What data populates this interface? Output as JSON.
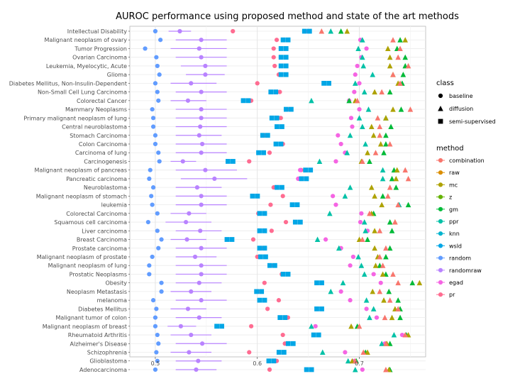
{
  "chart_data": {
    "type": "scatter",
    "title": "AUROC performance using proposed method and state of the art methods",
    "xlabel": "",
    "ylabel": "",
    "xlim": [
      0.475,
      0.765
    ],
    "xticks": [
      "0.5",
      "0.6",
      "0.7"
    ],
    "xtick_values": [
      0.5,
      0.6,
      0.7
    ],
    "grid": true,
    "legend_position": "right",
    "categories": [
      "Intellectual Disability",
      "Malignant neoplasm of ovary",
      "Tumor Progression",
      "Ovarian Carcinoma",
      "Leukemia, Myelocytic, Acute",
      "Glioma",
      "Diabetes Mellitus, Non-Insulin-Dependent",
      "Non-Small Cell Lung Carcinoma",
      "Colorectal Cancer",
      "Mammary Neoplasms",
      "Primary malignant neoplasm of lung",
      "Central neuroblastoma",
      "Stomach Carcinoma",
      "Colon Carcinoma",
      "Carcinoma of lung",
      "Carcinogenesis",
      "Malignant neoplasm of pancreas",
      "Pancreatic carcinoma",
      "Neuroblastoma",
      "Malignant neoplasm of stomach",
      "leukemia",
      "Colorectal Carcinoma",
      "Squamous cell carcinoma",
      "Liver carcinoma",
      "Breast Carcinoma",
      "Prostate carcinoma",
      "Malignant neoplasm of prostate",
      "Malignant neoplasm of lung",
      "Prostatic Neoplasms",
      "Obesity",
      "Neoplasm Metastasis",
      "melanoma",
      "Diabetes Mellitus",
      "Malignant tumor of colon",
      "Malignant neoplasm of breast",
      "Rheumatoid Arthritis",
      "Alzheimer's Disease",
      "Schizophrenia",
      "Glioblastoma",
      "Adenocarcinoma"
    ],
    "shape_legend": {
      "title": "class",
      "items": [
        {
          "label": "baseline",
          "shape": "circle"
        },
        {
          "label": "diffusion",
          "shape": "triangle"
        },
        {
          "label": "semi-supervised",
          "shape": "square"
        }
      ]
    },
    "color_legend": {
      "title": "method",
      "items": [
        {
          "label": "combination",
          "color": "#F8766D"
        },
        {
          "label": "raw",
          "color": "#DB8E00"
        },
        {
          "label": "mc",
          "color": "#AEA200"
        },
        {
          "label": "z",
          "color": "#64B200"
        },
        {
          "label": "gm",
          "color": "#00BA38"
        },
        {
          "label": "ppr",
          "color": "#00C1A7"
        },
        {
          "label": "knn",
          "color": "#00B4CE"
        },
        {
          "label": "wsld",
          "color": "#00A6E6"
        },
        {
          "label": "random",
          "color": "#619CFF"
        },
        {
          "label": "randomraw",
          "color": "#B983FF"
        },
        {
          "label": "egad",
          "color": "#F564E3"
        },
        {
          "label": "pr",
          "color": "#FF6C91"
        }
      ]
    },
    "series": [
      {
        "name": "random",
        "class": "baseline",
        "values": [
          0.5,
          0.505,
          0.49,
          0.501,
          0.502,
          0.504,
          0.5,
          0.502,
          0.503,
          0.497,
          0.498,
          0.498,
          0.5,
          0.5,
          0.503,
          0.504,
          0.495,
          0.494,
          0.498,
          0.496,
          0.497,
          0.502,
          0.493,
          0.502,
          0.506,
          0.503,
          0.497,
          0.494,
          0.494,
          0.506,
          0.506,
          0.498,
          0.501,
          0.5,
          0.5,
          0.502,
          0.503,
          0.501,
          0.502,
          0.5
        ]
      },
      {
        "name": "randomraw",
        "class": "baseline",
        "values": [
          0.524,
          0.545,
          0.543,
          0.545,
          0.549,
          0.549,
          0.535,
          0.545,
          0.532,
          0.545,
          0.545,
          0.544,
          0.543,
          0.546,
          0.545,
          0.527,
          0.549,
          0.558,
          0.541,
          0.545,
          0.545,
          0.533,
          0.53,
          0.544,
          0.531,
          0.545,
          0.539,
          0.545,
          0.545,
          0.543,
          0.535,
          0.545,
          0.532,
          0.543,
          0.525,
          0.535,
          0.546,
          0.533,
          0.542,
          0.54
        ]
      },
      {
        "name": "randomraw_range",
        "class": "baseline",
        "values": [
          [
            0.513,
            0.535
          ],
          [
            0.52,
            0.57
          ],
          [
            0.515,
            0.57
          ],
          [
            0.52,
            0.57
          ],
          [
            0.525,
            0.57
          ],
          [
            0.53,
            0.568
          ],
          [
            0.515,
            0.56
          ],
          [
            0.52,
            0.57
          ],
          [
            0.515,
            0.55
          ],
          [
            0.52,
            0.57
          ],
          [
            0.52,
            0.57
          ],
          [
            0.52,
            0.57
          ],
          [
            0.52,
            0.565
          ],
          [
            0.52,
            0.57
          ],
          [
            0.52,
            0.57
          ],
          [
            0.515,
            0.54
          ],
          [
            0.52,
            0.58
          ],
          [
            0.525,
            0.59
          ],
          [
            0.52,
            0.565
          ],
          [
            0.52,
            0.57
          ],
          [
            0.52,
            0.57
          ],
          [
            0.515,
            0.55
          ],
          [
            0.51,
            0.555
          ],
          [
            0.52,
            0.565
          ],
          [
            0.515,
            0.55
          ],
          [
            0.52,
            0.57
          ],
          [
            0.52,
            0.56
          ],
          [
            0.52,
            0.57
          ],
          [
            0.52,
            0.57
          ],
          [
            0.52,
            0.565
          ],
          [
            0.515,
            0.555
          ],
          [
            0.52,
            0.57
          ],
          [
            0.515,
            0.55
          ],
          [
            0.52,
            0.565
          ],
          [
            0.512,
            0.54
          ],
          [
            0.515,
            0.555
          ],
          [
            0.52,
            0.57
          ],
          [
            0.515,
            0.555
          ],
          [
            0.52,
            0.565
          ],
          [
            0.52,
            0.56
          ]
        ]
      },
      {
        "name": "egad",
        "class": "baseline",
        "values": [
          0.65,
          0.701,
          0.707,
          0.702,
          0.698,
          0.696,
          0.7,
          0.695,
          0.69,
          0.7,
          0.692,
          0.693,
          0.679,
          0.682,
          0.686,
          0.677,
          0.642,
          0.64,
          0.619,
          0.674,
          0.677,
          0.702,
          0.701,
          0.708,
          0.667,
          0.682,
          0.694,
          0.691,
          0.714,
          0.721,
          0.682,
          0.691,
          0.707,
          0.717,
          0.657,
          0.742,
          0.725,
          0.686,
          0.695,
          0.703
        ]
      },
      {
        "name": "pr",
        "class": "baseline",
        "values": [
          0.576,
          0.619,
          0.616,
          0.616,
          0.617,
          0.621,
          0.6,
          0.622,
          0.594,
          0.632,
          0.623,
          0.624,
          0.607,
          0.625,
          0.612,
          0.592,
          0.643,
          0.641,
          0.616,
          0.625,
          0.613,
          0.601,
          0.628,
          0.614,
          0.596,
          0.604,
          0.6,
          0.616,
          0.624,
          0.607,
          0.601,
          0.621,
          0.61,
          0.63,
          0.594,
          0.625,
          0.627,
          0.592,
          0.619,
          0.612
        ]
      },
      {
        "name": "wsld",
        "class": "semi-supervised",
        "values": [
          0.648,
          0.627,
          0.625,
          0.625,
          0.625,
          0.625,
          0.667,
          0.615,
          0.588,
          0.63,
          0.616,
          0.621,
          0.607,
          0.62,
          0.603,
          0.573,
          0.649,
          0.645,
          0.621,
          0.597,
          0.636,
          0.604,
          0.639,
          0.604,
          0.572,
          0.604,
          0.605,
          0.614,
          0.627,
          0.66,
          0.601,
          0.604,
          0.66,
          0.624,
          0.562,
          0.657,
          0.632,
          0.623,
          0.613,
          0.65
        ]
      },
      {
        "name": "combination",
        "class": "diffusion",
        "values": [
          0.663,
          0.733,
          0.74,
          0.738,
          0.748,
          0.733,
          0.74,
          0.722,
          0.698,
          0.75,
          0.718,
          0.72,
          0.72,
          0.73,
          0.716,
          0.703,
          0.745,
          0.748,
          0.73,
          0.728,
          0.738,
          0.71,
          0.735,
          0.72,
          0.703,
          0.726,
          0.72,
          0.723,
          0.733,
          0.738,
          0.72,
          0.73,
          0.738,
          0.725,
          0.7,
          0.745,
          0.726,
          0.704,
          0.696,
          0.726
        ]
      },
      {
        "name": "mc",
        "class": "diffusion",
        "values": [
          0.688,
          0.745,
          0.728,
          0.73,
          0.73,
          0.733,
          0.738,
          0.715,
          0.696,
          0.733,
          0.726,
          0.712,
          0.714,
          0.721,
          0.708,
          0.702,
          0.737,
          0.736,
          0.712,
          0.715,
          0.722,
          0.712,
          0.735,
          0.715,
          0.7,
          0.715,
          0.718,
          0.716,
          0.723,
          0.759,
          0.713,
          0.724,
          0.735,
          0.732,
          0.692,
          0.748,
          0.727,
          0.708,
          0.693,
          0.729
        ]
      },
      {
        "name": "gm",
        "class": "diffusion",
        "values": [
          0.682,
          0.74,
          0.737,
          0.745,
          0.745,
          0.743,
          0.742,
          0.73,
          0.69,
          0.741,
          0.726,
          0.731,
          0.726,
          0.726,
          0.724,
          0.71,
          0.734,
          0.732,
          0.736,
          0.723,
          0.748,
          0.714,
          0.73,
          0.732,
          0.708,
          0.73,
          0.726,
          0.72,
          0.726,
          0.752,
          0.729,
          0.738,
          0.74,
          0.74,
          0.698,
          0.746,
          0.73,
          0.706,
          0.697,
          0.73
        ]
      },
      {
        "name": "ppr",
        "class": "diffusion",
        "values": [
          0.672,
          0.703,
          0.699,
          0.703,
          0.704,
          0.713,
          0.696,
          0.705,
          0.653,
          0.709,
          0.7,
          0.703,
          0.691,
          0.706,
          0.688,
          0.661,
          0.723,
          0.723,
          0.691,
          0.686,
          0.739,
          0.671,
          0.705,
          0.706,
          0.659,
          0.68,
          0.699,
          0.702,
          0.705,
          0.684,
          0.672,
          0.707,
          0.714,
          0.71,
          0.653,
          0.734,
          0.722,
          0.664,
          0.689,
          0.696
        ]
      }
    ]
  }
}
